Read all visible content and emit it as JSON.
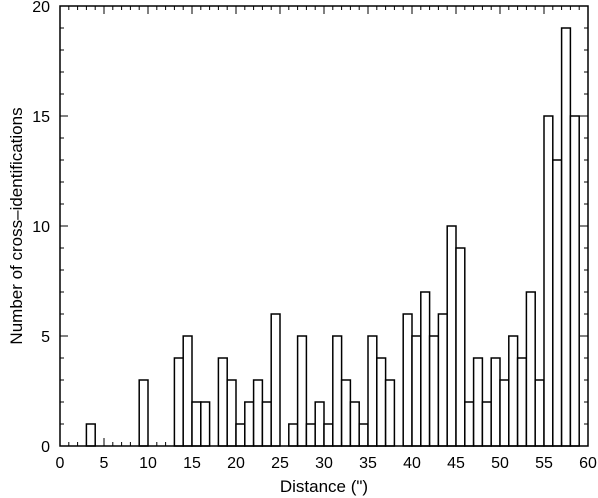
{
  "chart_data": {
    "type": "bar",
    "title": "",
    "xlabel": "Distance (\")",
    "ylabel": "Number of cross–identifications",
    "xlim": [
      0,
      60
    ],
    "ylim": [
      0,
      20
    ],
    "x_ticks": [
      0,
      5,
      10,
      15,
      20,
      25,
      30,
      35,
      40,
      45,
      50,
      55,
      60
    ],
    "y_ticks": [
      0,
      5,
      10,
      15,
      20
    ],
    "bin_width": 1,
    "x": [
      0,
      1,
      2,
      3,
      4,
      5,
      6,
      7,
      8,
      9,
      10,
      11,
      12,
      13,
      14,
      15,
      16,
      17,
      18,
      19,
      20,
      21,
      22,
      23,
      24,
      25,
      26,
      27,
      28,
      29,
      30,
      31,
      32,
      33,
      34,
      35,
      36,
      37,
      38,
      39,
      40,
      41,
      42,
      43,
      44,
      45,
      46,
      47,
      48,
      49,
      50,
      51,
      52,
      53,
      54,
      55,
      56,
      57,
      58,
      59
    ],
    "values": [
      0,
      0,
      0,
      1,
      0,
      0,
      0,
      0,
      0,
      3,
      0,
      0,
      0,
      4,
      5,
      2,
      2,
      0,
      4,
      3,
      1,
      2,
      3,
      2,
      6,
      0,
      1,
      5,
      1,
      2,
      1,
      5,
      3,
      2,
      1,
      5,
      4,
      3,
      0,
      6,
      5,
      7,
      5,
      6,
      10,
      9,
      2,
      4,
      2,
      4,
      3,
      5,
      4,
      7,
      3,
      15,
      13,
      19,
      15,
      0
    ],
    "grid": false,
    "legend": "none"
  }
}
